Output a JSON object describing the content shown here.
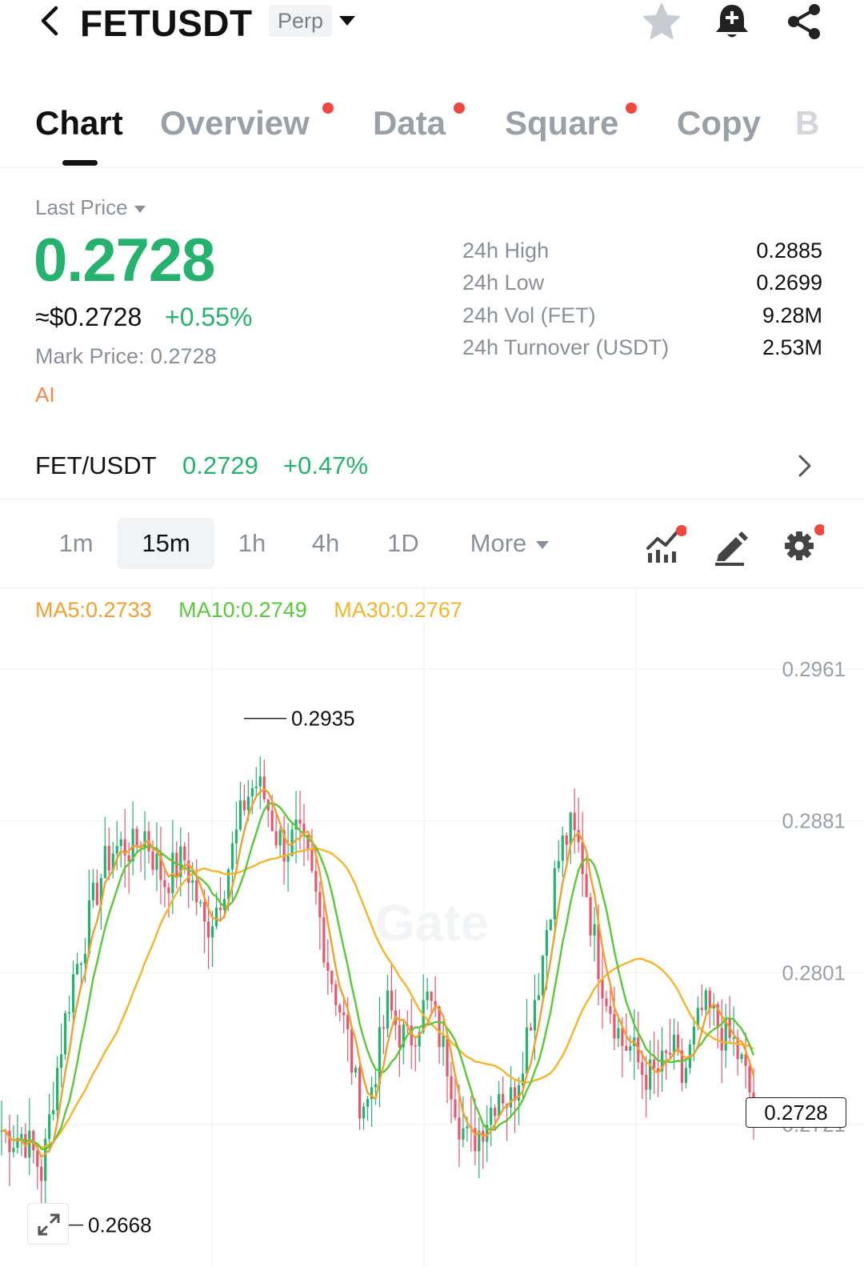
{
  "header": {
    "title": "FETUSDT",
    "badge": "Perp",
    "icons": [
      "back-icon",
      "star-icon",
      "bell-plus-icon",
      "share-icon"
    ]
  },
  "tabs": [
    {
      "label": "Chart",
      "active": true,
      "dot": false
    },
    {
      "label": "Overview",
      "active": false,
      "dot": true
    },
    {
      "label": "Data",
      "active": false,
      "dot": true
    },
    {
      "label": "Square",
      "active": false,
      "dot": true
    },
    {
      "label": "Copy",
      "active": false,
      "dot": false
    },
    {
      "label": "B",
      "active": false,
      "dot": false
    }
  ],
  "price": {
    "last_price_label": "Last Price",
    "last_price": "0.2728",
    "usd_approx": "≈$0.2728",
    "change": "+0.55%",
    "mark_price": "Mark Price:  0.2728",
    "tag": "AI"
  },
  "stats": [
    {
      "label": "24h High",
      "value": "0.2885"
    },
    {
      "label": "24h Low",
      "value": "0.2699"
    },
    {
      "label": "24h Vol (FET)",
      "value": "9.28M"
    },
    {
      "label": "24h Turnover (USDT)",
      "value": "2.53M"
    }
  ],
  "spot": {
    "pair": "FET/USDT",
    "price": "0.2729",
    "change": "+0.47%"
  },
  "intervals": {
    "items": [
      "1m",
      "15m",
      "1h",
      "4h",
      "1D"
    ],
    "active": "15m",
    "more": "More"
  },
  "toolbar_icons": [
    "indicator-icon",
    "draw-pen-icon",
    "settings-gear-icon"
  ],
  "colors": {
    "up": "#25b26f",
    "down": "#e8566d",
    "ma5": "#f0a030",
    "ma10": "#59c93a",
    "ma30": "#f5b52a",
    "accent_dot": "#f0483e"
  },
  "chart_data": {
    "type": "candlestick",
    "interval": "15m",
    "ma_legend": {
      "ma5": "MA5:0.2733",
      "ma10": "MA10:0.2749",
      "ma30": "MA30:0.2767"
    },
    "y_ticks": [
      "0.2961",
      "0.2881",
      "0.2801",
      "0.2721"
    ],
    "y_tick_values": [
      0.2961,
      0.2881,
      0.2801,
      0.2721
    ],
    "current_price_label": "0.2728",
    "current_price": 0.2728,
    "max_label": "0.2935",
    "max_value": 0.2935,
    "min_label": "0.2668",
    "min_value": 0.2668,
    "watermark": "Gate",
    "close_path": [
      0.2718,
      0.2714,
      0.2716,
      0.2707,
      0.2695,
      0.2735,
      0.2768,
      0.2798,
      0.2816,
      0.2838,
      0.2856,
      0.2866,
      0.2868,
      0.2866,
      0.2876,
      0.2861,
      0.2849,
      0.2856,
      0.2861,
      0.2844,
      0.2824,
      0.2834,
      0.2851,
      0.2871,
      0.2893,
      0.2901,
      0.2892,
      0.2874,
      0.2866,
      0.2874,
      0.2861,
      0.2839,
      0.2808,
      0.2788,
      0.2768,
      0.2736,
      0.2732,
      0.2756,
      0.2784,
      0.2771,
      0.2764,
      0.2776,
      0.2788,
      0.2769,
      0.2751,
      0.2724,
      0.271,
      0.2718,
      0.2728,
      0.2741,
      0.2732,
      0.2751,
      0.2778,
      0.2801,
      0.2839,
      0.2866,
      0.2876,
      0.2864,
      0.2828,
      0.2799,
      0.2782,
      0.2764,
      0.2761,
      0.2749,
      0.2746,
      0.2751,
      0.2761,
      0.2744,
      0.2764,
      0.2782,
      0.2778,
      0.2768,
      0.2764,
      0.275,
      0.273
    ]
  }
}
